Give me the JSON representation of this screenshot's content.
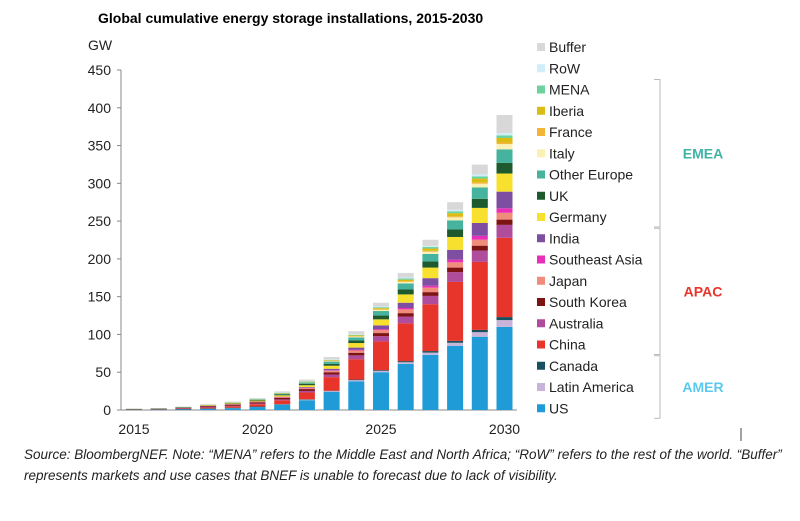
{
  "chart_data": {
    "type": "bar",
    "stacked": true,
    "title": "Global cumulative energy storage installations, 2015-2030",
    "ylabel": "GW",
    "ylim": [
      0,
      450
    ],
    "yticks": [
      0,
      50,
      100,
      150,
      200,
      250,
      300,
      350,
      400,
      450
    ],
    "x": [
      2015,
      2016,
      2017,
      2018,
      2019,
      2020,
      2021,
      2022,
      2023,
      2024,
      2025,
      2026,
      2027,
      2028,
      2029,
      2030
    ],
    "xtick_labels": [
      "2015",
      "2020",
      "2025",
      "2030"
    ],
    "series": [
      {
        "name": "US",
        "color": "#1f9bd7",
        "values": [
          0.5,
          0.8,
          1.2,
          1.8,
          2.5,
          4,
          7,
          13,
          24,
          38,
          50,
          61,
          73,
          85,
          97,
          110
        ]
      },
      {
        "name": "Latin America",
        "color": "#c9b4d9",
        "values": [
          0.1,
          0.1,
          0.1,
          0.2,
          0.3,
          0.4,
          0.5,
          0.8,
          1,
          1.5,
          1.8,
          2.2,
          3,
          4,
          6,
          9
        ]
      },
      {
        "name": "Canada",
        "color": "#17505e",
        "values": [
          0.1,
          0.1,
          0.1,
          0.1,
          0.2,
          0.2,
          0.3,
          0.4,
          0.5,
          0.8,
          1,
          1.5,
          2,
          2.5,
          3,
          4
        ]
      },
      {
        "name": "China",
        "color": "#e8352b",
        "values": [
          0.2,
          0.4,
          0.7,
          1.2,
          2,
          3,
          5,
          9,
          18,
          27,
          38,
          50,
          62,
          78,
          90,
          105
        ]
      },
      {
        "name": "Australia",
        "color": "#b04c9c",
        "values": [
          0.1,
          0.1,
          0.2,
          0.3,
          0.5,
          0.8,
          1.2,
          2,
          3.5,
          5,
          7,
          9,
          11,
          13,
          15,
          17
        ]
      },
      {
        "name": "South Korea",
        "color": "#7c1414",
        "values": [
          0.1,
          0.2,
          0.5,
          1.2,
          1.5,
          1.8,
          2,
          2.5,
          3,
          3.5,
          4,
          4.5,
          5,
          6,
          6.5,
          7
        ]
      },
      {
        "name": "Japan",
        "color": "#f08c7a",
        "values": [
          0.1,
          0.1,
          0.2,
          0.3,
          0.4,
          0.5,
          0.8,
          1.2,
          2,
          3,
          4,
          5,
          6,
          7,
          8,
          9
        ]
      },
      {
        "name": "Southeast Asia",
        "color": "#e82fb7",
        "values": [
          0,
          0,
          0,
          0.1,
          0.1,
          0.2,
          0.3,
          0.4,
          0.6,
          0.8,
          1.2,
          1.8,
          2.5,
          3.5,
          5,
          6
        ]
      },
      {
        "name": "India",
        "color": "#7e4ea3",
        "values": [
          0,
          0,
          0.1,
          0.1,
          0.2,
          0.3,
          0.5,
          1,
          2,
          3,
          5,
          7,
          10,
          13,
          17,
          22
        ]
      },
      {
        "name": "Germany",
        "color": "#f7e12e",
        "values": [
          0.2,
          0.3,
          0.5,
          0.7,
          1,
          1.3,
          1.8,
          2.5,
          4,
          6,
          8,
          11,
          14,
          17,
          20,
          24
        ]
      },
      {
        "name": "UK",
        "color": "#1f5a2e",
        "values": [
          0.1,
          0.1,
          0.2,
          0.3,
          0.5,
          0.8,
          1.2,
          1.8,
          2.5,
          3.5,
          5,
          6.5,
          8,
          10,
          12,
          14
        ]
      },
      {
        "name": "Other Europe",
        "color": "#45b39d",
        "values": [
          0.1,
          0.2,
          0.3,
          0.4,
          0.6,
          0.8,
          1.2,
          1.8,
          3,
          4,
          6,
          8,
          10,
          12,
          15,
          18
        ]
      },
      {
        "name": "Italy",
        "color": "#fbf0b5",
        "values": [
          0,
          0,
          0,
          0.1,
          0.1,
          0.2,
          0.3,
          0.5,
          0.8,
          1,
          1.5,
          2,
          3,
          4,
          5,
          7
        ]
      },
      {
        "name": "France",
        "color": "#f2b538",
        "values": [
          0,
          0,
          0,
          0.1,
          0.1,
          0.1,
          0.2,
          0.3,
          0.4,
          0.6,
          0.8,
          1,
          1.2,
          1.5,
          1.8,
          2
        ]
      },
      {
        "name": "Iberia",
        "color": "#dcbb12",
        "values": [
          0,
          0,
          0,
          0.1,
          0.1,
          0.2,
          0.3,
          0.4,
          0.7,
          1,
          1.5,
          2,
          3,
          4,
          5,
          6
        ]
      },
      {
        "name": "MENA",
        "color": "#6dd29e",
        "values": [
          0,
          0,
          0,
          0,
          0.1,
          0.1,
          0.2,
          0.3,
          0.5,
          0.8,
          1.2,
          1.6,
          2,
          2.5,
          3,
          3.5
        ]
      },
      {
        "name": "RoW",
        "color": "#cfeefa",
        "values": [
          0,
          0,
          0,
          0.1,
          0.1,
          0.2,
          0.3,
          0.4,
          0.6,
          0.8,
          1,
          1.3,
          1.6,
          2,
          2.5,
          3
        ]
      },
      {
        "name": "Buffer",
        "color": "#d8d8d8",
        "values": [
          0.2,
          0.3,
          0.4,
          0.6,
          0.8,
          1,
          1.5,
          2,
          3,
          4,
          5,
          6,
          8,
          10,
          13,
          24
        ]
      }
    ],
    "legend_placement": "right",
    "legend_order": [
      "Buffer",
      "RoW",
      "MENA",
      "Iberia",
      "France",
      "Italy",
      "Other Europe",
      "UK",
      "Germany",
      "India",
      "Southeast Asia",
      "Japan",
      "South Korea",
      "Australia",
      "China",
      "Canada",
      "Latin America",
      "US"
    ],
    "regions": [
      {
        "label": "EMEA",
        "color": "#3fb3a6",
        "from": "MENA",
        "to": "Germany"
      },
      {
        "label": "APAC",
        "color": "#e8352b",
        "from": "India",
        "to": "China"
      },
      {
        "label": "AMER",
        "color": "#5bc9ee",
        "from": "Canada",
        "to": "US"
      }
    ],
    "grid": false
  },
  "source_note": "Source: BloombergNEF. Note: “MENA” refers to the Middle East and North Africa; “RoW” refers to the rest of the world. “Buffer” represents markets and use cases that BNEF is unable to forecast due to lack of visibility."
}
